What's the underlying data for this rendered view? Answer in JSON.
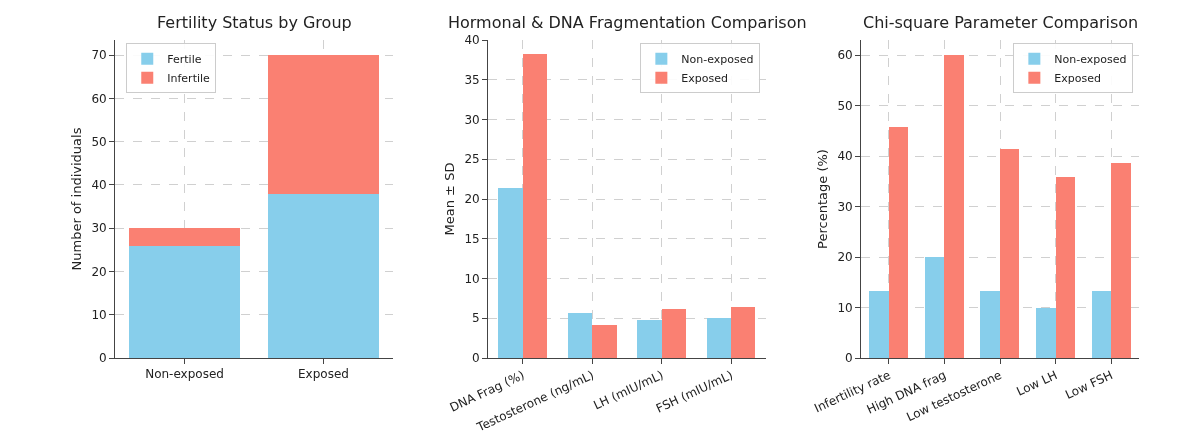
{
  "chart_data": [
    {
      "type": "bar",
      "title": "Fertility Status by Group",
      "ylabel": "Number of individuals",
      "categories": [
        "Non-exposed",
        "Exposed"
      ],
      "stacked": true,
      "series": [
        {
          "name": "Fertile",
          "color": "#87ceeb",
          "values": [
            26,
            38
          ]
        },
        {
          "name": "Infertile",
          "color": "#fa8072",
          "values": [
            4,
            32
          ]
        }
      ],
      "ylim": [
        0,
        73.5
      ],
      "yticks": [
        0,
        10,
        20,
        30,
        40,
        50,
        60,
        70
      ],
      "grid": true,
      "legend": "top left"
    },
    {
      "type": "bar",
      "title": "Hormonal & DNA Fragmentation Comparison",
      "ylabel": "Mean ± SD",
      "categories": [
        "DNA Frag (%)",
        "Testosterone (ng/mL)",
        "LH (mIU/mL)",
        "FSH (mIU/mL)"
      ],
      "series": [
        {
          "name": "Non-exposed",
          "color": "#87ceeb",
          "values": [
            21.4,
            5.6,
            4.8,
            5.0
          ]
        },
        {
          "name": "Exposed",
          "color": "#fa8072",
          "values": [
            38.2,
            4.1,
            6.2,
            6.4
          ]
        }
      ],
      "ylim": [
        0,
        40
      ],
      "yticks": [
        0,
        5,
        10,
        15,
        20,
        25,
        30,
        35,
        40
      ],
      "grid": true,
      "legend": "top right"
    },
    {
      "type": "bar",
      "title": "Chi-square Parameter Comparison",
      "ylabel": "Percentage (%)",
      "categories": [
        "Infertility rate",
        "High DNA frag",
        "Low testosterone",
        "Low LH",
        "Low FSH"
      ],
      "series": [
        {
          "name": "Non-exposed",
          "color": "#87ceeb",
          "values": [
            13.3,
            20,
            13.3,
            10,
            13.3
          ]
        },
        {
          "name": "Exposed",
          "color": "#fa8072",
          "values": [
            45.7,
            60,
            41.4,
            35.8,
            38.6
          ]
        }
      ],
      "ylim": [
        0,
        63
      ],
      "yticks": [
        0,
        10,
        20,
        30,
        40,
        50,
        60
      ],
      "grid": true,
      "legend": "top right"
    }
  ]
}
